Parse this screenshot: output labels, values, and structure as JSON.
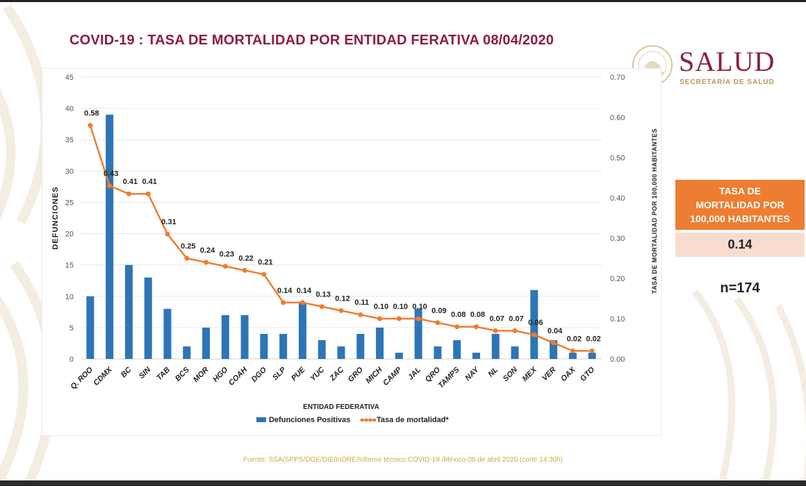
{
  "header": {
    "title": "COVID-19 : TASA DE MORTALIDAD POR ENTIDAD FERATIVA 08/04/2020"
  },
  "logo": {
    "word": "SALUD",
    "sub": "SECRETARÍA DE SALUD",
    "seal_text": "ESTADOS UNIDOS MEXICANOS"
  },
  "sidebar": {
    "rate_label": "TASA DE MORTALIDAD POR 100,000 HABITANTES",
    "rate_value": "0.14",
    "n_label": "n=174"
  },
  "footer": {
    "source": "Fuente: SSA(SPPS/DGE/DIE/InDRE/Informe técnico.COVID-19 /México-08 de abril 2020 (corte 14:30h)"
  },
  "colors": {
    "bar": "#2e75b6",
    "line": "#ed7d31",
    "title": "#8a1f3d",
    "box": "#ed7d31",
    "box_light": "#f8dcd0",
    "source": "#d6a64a"
  },
  "chart_data": {
    "type": "bar",
    "xlabel": "ENTIDAD FEDERATIVA",
    "ylabel": "DEFUNCIONES",
    "y2label": "TASA DE MORTALIDAD POR 100,000 HABITANTES",
    "ylim": [
      0,
      45
    ],
    "y2lim": [
      0,
      0.7
    ],
    "yticks": [
      "0",
      "5",
      "10",
      "15",
      "20",
      "25",
      "30",
      "35",
      "40",
      "45"
    ],
    "y2ticks": [
      "0.00",
      "0.10",
      "0.20",
      "0.30",
      "0.40",
      "0.50",
      "0.60",
      "0.70"
    ],
    "grid": true,
    "legend_position": "bottom",
    "categories": [
      "Q. ROO",
      "CDMX",
      "BC",
      "SIN",
      "TAB",
      "BCS",
      "MOR",
      "HGO",
      "COAH",
      "DGO",
      "SLP",
      "PUE",
      "YUC",
      "ZAC",
      "GRO",
      "MICH",
      "CAMP",
      "JAL",
      "QRO",
      "TAMPS",
      "NAY",
      "NL",
      "SON",
      "MEX",
      "VER",
      "OAX",
      "GTO"
    ],
    "series": [
      {
        "name": "Defunciones Positivas",
        "type": "bar",
        "axis": "left",
        "values": [
          10,
          39,
          15,
          13,
          8,
          2,
          5,
          7,
          7,
          4,
          4,
          9,
          3,
          2,
          4,
          5,
          1,
          8,
          2,
          3,
          1,
          4,
          2,
          11,
          3,
          1,
          1
        ]
      },
      {
        "name": "Tasa de mortalidad*",
        "type": "line",
        "axis": "right",
        "values": [
          0.58,
          0.43,
          0.41,
          0.41,
          0.31,
          0.25,
          0.24,
          0.23,
          0.22,
          0.21,
          0.14,
          0.14,
          0.13,
          0.12,
          0.11,
          0.1,
          0.1,
          0.1,
          0.09,
          0.08,
          0.08,
          0.07,
          0.07,
          0.06,
          0.04,
          0.02,
          0.02
        ],
        "labels": [
          "0.58",
          "0.43",
          "0.41",
          "0.41",
          "0.31",
          "0.25",
          "0.24",
          "0.23",
          "0.22",
          "0.21",
          "0.14",
          "0.14",
          "0.13",
          "0.12",
          "0.11",
          "0.10",
          "0.10",
          "0.10",
          "0.09",
          "0.08",
          "0.08",
          "0.07",
          "0.07",
          "0.06",
          "0.04",
          "0.02",
          "0.02"
        ]
      }
    ]
  }
}
